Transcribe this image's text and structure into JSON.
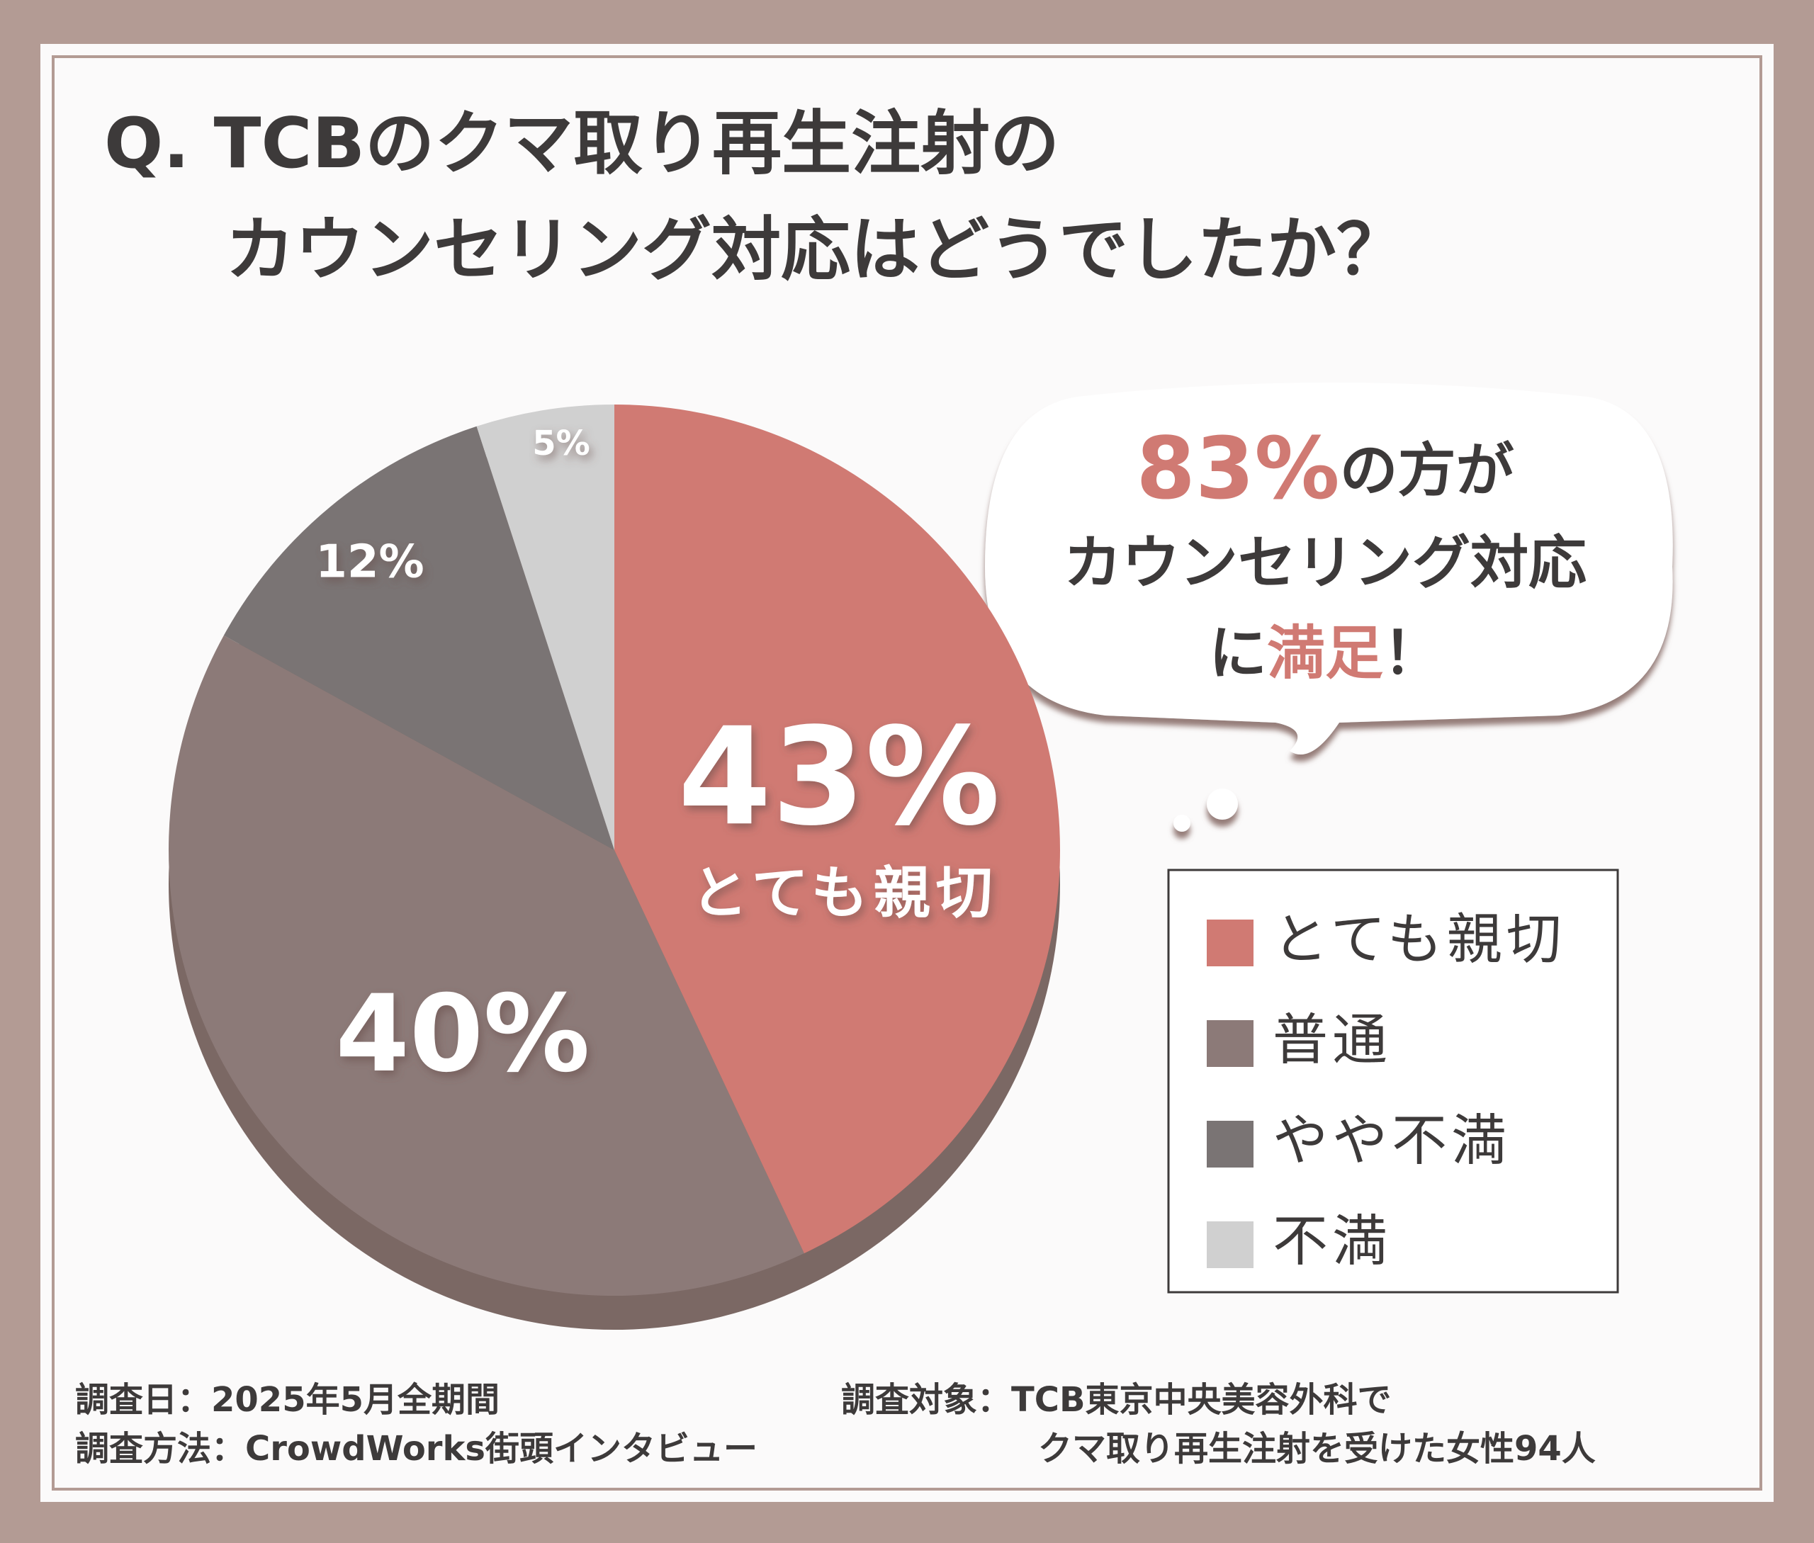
{
  "chart_data": {
    "type": "pie",
    "title": [
      "Q. TCBのクマ取り再生注射の",
      "カウンセリング対応はどうでしたか？"
    ],
    "categories": [
      "とても親切",
      "普通",
      "やや不満",
      "不満"
    ],
    "values": [
      43,
      40,
      12,
      5
    ],
    "value_labels": [
      "43%",
      "40%",
      "12%",
      "5%"
    ],
    "colors": [
      "#d07a73",
      "#8c7a78",
      "#7a7474",
      "#d0d0d0"
    ],
    "callout": [
      "83%",
      "の方が",
      "カウンセリング対応",
      "に",
      "満足",
      "！"
    ],
    "footer": [
      "調査日：2025年5月全期間",
      "調査方法：CrowdWorks街頭インタビュー",
      "調査対象：TCB東京中央美容外科で",
      "クマ取り再生注射を受けた女性94人"
    ]
  }
}
